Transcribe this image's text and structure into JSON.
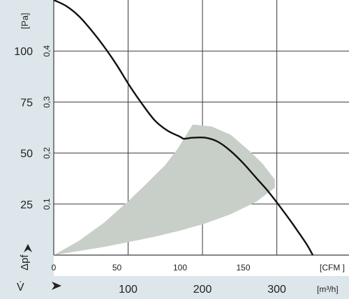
{
  "chart_data": {
    "type": "line",
    "title": "",
    "axes": {
      "y_pa": {
        "unit": "[Pa]",
        "range": [
          0,
          125
        ],
        "ticks": [
          25,
          50,
          75,
          100
        ]
      },
      "y_inh2o": {
        "range": [
          0,
          0.5
        ],
        "ticks": [
          0.1,
          0.2,
          0.3,
          0.4
        ],
        "tick_labels": [
          "0,1",
          "0,2",
          "0,3",
          "0,4"
        ]
      },
      "x_cfm": {
        "unit": "[CFM ]",
        "range": [
          0,
          235
        ],
        "ticks": [
          0,
          50,
          100,
          150
        ]
      },
      "x_m3h": {
        "unit": "[m³/h]",
        "ticks": [
          100,
          200,
          300
        ]
      },
      "pressure_symbol": "Δpf",
      "flow_symbol": "V̇"
    },
    "grid": true,
    "curve": {
      "x_cfm": [
        0,
        10,
        20,
        30,
        40,
        50,
        60,
        70,
        80,
        90,
        100,
        103,
        110,
        120,
        130,
        140,
        150,
        160,
        170,
        180,
        190,
        200,
        205
      ],
      "y_pa": [
        125,
        122,
        117,
        110,
        102,
        93,
        83,
        74,
        66,
        61,
        58,
        57,
        57.5,
        57.5,
        55.5,
        51,
        45,
        38,
        31,
        23,
        14.5,
        5.5,
        0
      ]
    },
    "operating_region": {
      "upper_x_cfm": [
        0,
        20,
        40,
        60,
        75,
        88,
        98,
        106,
        110,
        125,
        140,
        155,
        165,
        175
      ],
      "upper_y_pa": [
        0,
        7,
        16,
        27,
        36,
        44,
        52,
        60,
        64,
        63,
        59,
        51,
        45,
        37
      ],
      "lower_x_cfm": [
        175,
        160,
        140,
        120,
        100,
        80,
        60,
        40,
        20,
        0
      ],
      "lower_y_pa": [
        33,
        26,
        20,
        15.5,
        12,
        9,
        6.5,
        4,
        2,
        0
      ]
    },
    "colors": {
      "curve": "#111111",
      "region": "#c7cfc8",
      "grid": "#3a3a3a",
      "panel": "#dde6ea"
    }
  }
}
